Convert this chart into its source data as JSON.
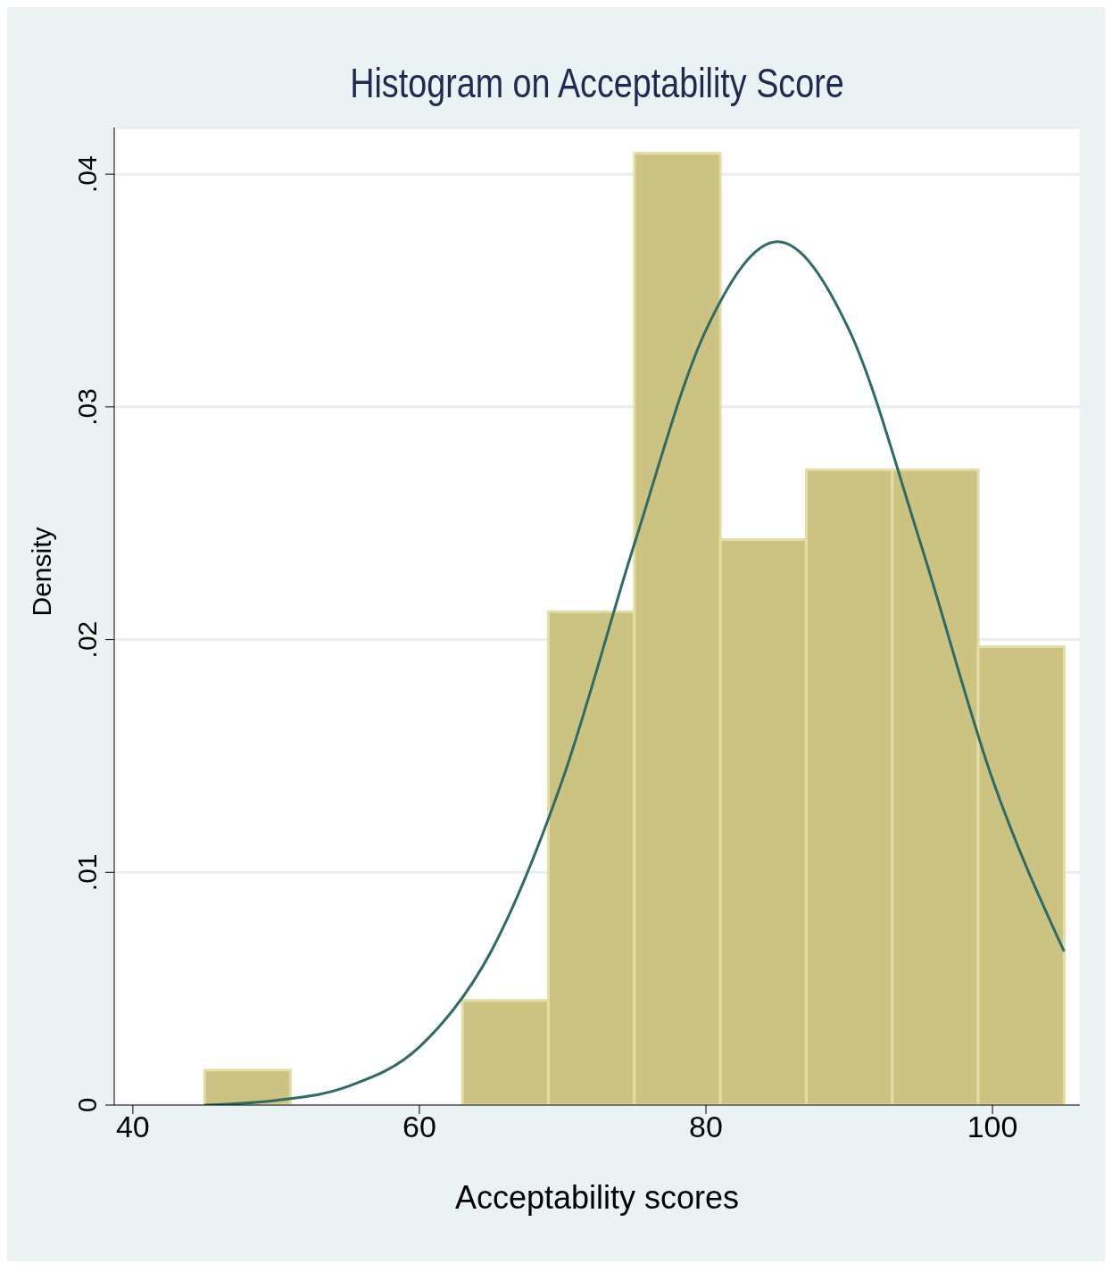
{
  "chart_data": {
    "type": "histogram",
    "title": "Histogram on Acceptability Score",
    "xlabel": "Acceptability scores",
    "ylabel": "Density",
    "bins": [
      45,
      51,
      57,
      63,
      69,
      75,
      81,
      87,
      93,
      99,
      105
    ],
    "series": [
      {
        "color": "#ccc382",
        "values": [
          0.0015,
          0,
          0,
          0.0045,
          0.0212,
          0.0409,
          0.0243,
          0.0273,
          0.0273,
          0.0197
        ]
      },
      {
        "type": "line",
        "color": "#2d6b66",
        "x": [
          45,
          50,
          55,
          60,
          65,
          70,
          75,
          80,
          85,
          90,
          95,
          100,
          105
        ],
        "values": [
          0.0,
          0.0002,
          0.0008,
          0.0025,
          0.0066,
          0.014,
          0.0241,
          0.0333,
          0.0371,
          0.0333,
          0.0241,
          0.014,
          0.0066
        ]
      }
    ],
    "xlim": [
      38.7,
      106.1
    ],
    "xticks": [
      40,
      60,
      80,
      100
    ],
    "ylim": [
      0,
      0.042
    ],
    "yticks": [
      {
        "value": 0,
        "label": "0"
      },
      {
        "value": 0.01,
        "label": ".01"
      },
      {
        "value": 0.02,
        "label": ".02"
      },
      {
        "value": 0.03,
        "label": ".03"
      },
      {
        "value": 0.04,
        "label": ".04"
      }
    ],
    "grid": "y",
    "marker": "none",
    "line_style": "solid"
  }
}
